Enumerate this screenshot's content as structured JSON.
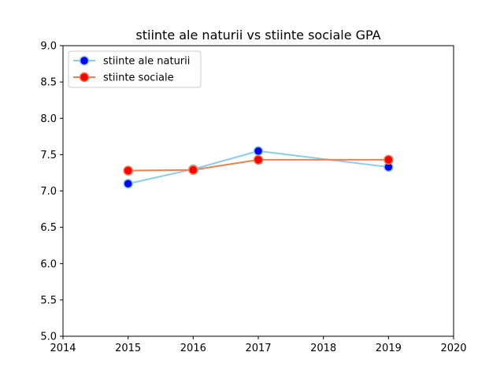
{
  "chart_data": {
    "type": "line",
    "title": "stiinte ale naturii vs stiinte sociale GPA",
    "xlabel": "",
    "ylabel": "",
    "xlim": [
      2014,
      2020
    ],
    "ylim": [
      5.0,
      9.0
    ],
    "x_ticks": [
      2014,
      2015,
      2016,
      2017,
      2018,
      2019,
      2020
    ],
    "x_tick_labels": [
      "2014",
      "2015",
      "2016",
      "2017",
      "2018",
      "2019",
      "2020"
    ],
    "y_ticks": [
      5.0,
      5.5,
      6.0,
      6.5,
      7.0,
      7.5,
      8.0,
      8.5,
      9.0
    ],
    "y_tick_labels": [
      "5.0",
      "5.5",
      "6.0",
      "6.5",
      "7.0",
      "7.5",
      "8.0",
      "8.5",
      "9.0"
    ],
    "grid": false,
    "legend_position": "top-left",
    "series": [
      {
        "name": "stiinte ale naturii",
        "x": [
          2015,
          2016,
          2017,
          2019
        ],
        "values": [
          7.1,
          7.3,
          7.55,
          7.33
        ],
        "line_color": "#87ceeb",
        "marker_color": "#0000ff"
      },
      {
        "name": "stiinte sociale",
        "x": [
          2015,
          2016,
          2017,
          2019
        ],
        "values": [
          7.28,
          7.29,
          7.43,
          7.43
        ],
        "line_color": "#f08050",
        "marker_color": "#ff0000"
      }
    ]
  }
}
